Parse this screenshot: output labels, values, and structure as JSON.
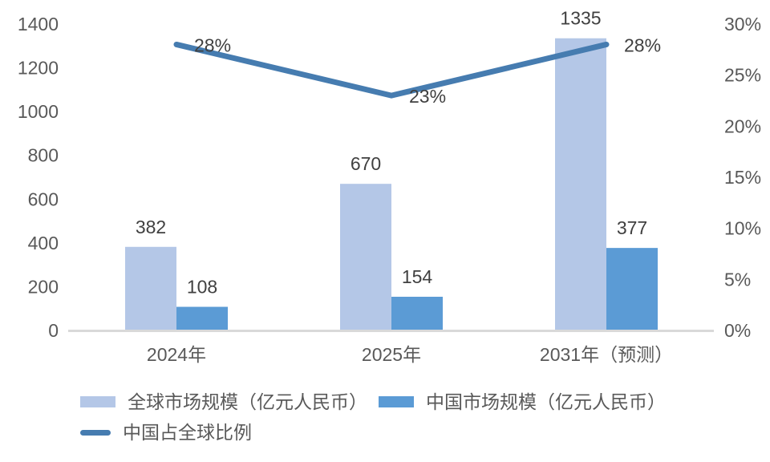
{
  "chart_data": {
    "type": "bar",
    "subtype": "combo_bar_line_dual_axis",
    "title": "",
    "categories": [
      "2024年",
      "2025年",
      "2031年（预测）"
    ],
    "series": [
      {
        "name": "全球市场规模（亿元人民币）",
        "chart_type": "bar",
        "axis": "left",
        "values": [
          382,
          670,
          1335
        ],
        "data_labels": [
          "382",
          "670",
          "1335"
        ],
        "color": "#b4c7e7"
      },
      {
        "name": "中国市场规模（亿元人民币）",
        "chart_type": "bar",
        "axis": "left",
        "values": [
          108,
          154,
          377
        ],
        "data_labels": [
          "108",
          "154",
          "377"
        ],
        "color": "#5b9bd5"
      },
      {
        "name": "中国占全球比例",
        "chart_type": "line",
        "axis": "right",
        "values": [
          28,
          23,
          28
        ],
        "data_labels": [
          "28%",
          "23%",
          "28%"
        ],
        "color": "#467cb0"
      }
    ],
    "left_axis": {
      "min": 0,
      "max": 1400,
      "step": 200,
      "tick_labels": [
        "0",
        "200",
        "400",
        "600",
        "800",
        "1000",
        "1200",
        "1400"
      ]
    },
    "right_axis": {
      "min": 0,
      "max": 30,
      "step": 5,
      "tick_labels": [
        "0%",
        "5%",
        "10%",
        "15%",
        "20%",
        "25%",
        "30%"
      ]
    },
    "grid": false,
    "legend_position": "bottom-left",
    "background": "#ffffff"
  },
  "colors": {
    "axis_text": "#595959",
    "category_text": "#595959",
    "data_label_text": "#404040",
    "axis_line": "#d9d9d9"
  }
}
